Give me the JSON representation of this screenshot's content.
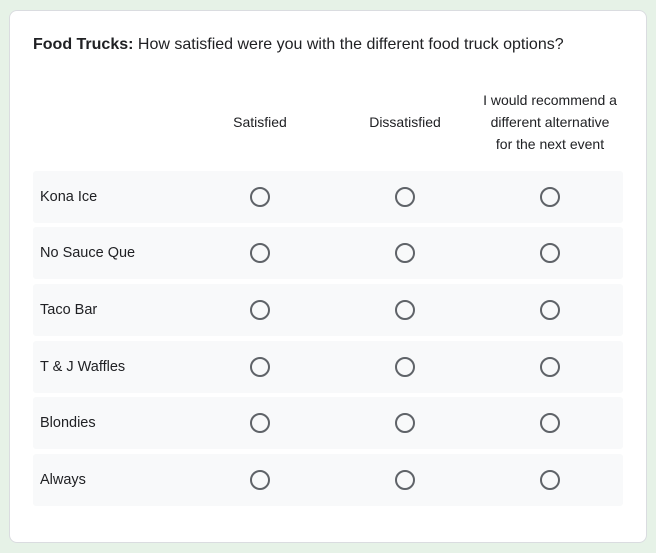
{
  "question": {
    "label": "Food Trucks:",
    "text": "How satisfied were you with the different food truck options?"
  },
  "columns": [
    "Satisfied",
    "Dissatisfied",
    "I would recommend a different alternative for the next event"
  ],
  "rows": [
    "Kona Ice",
    "No Sauce Que",
    "Taco Bar",
    "T & J Waffles",
    "Blondies",
    "Always"
  ]
}
